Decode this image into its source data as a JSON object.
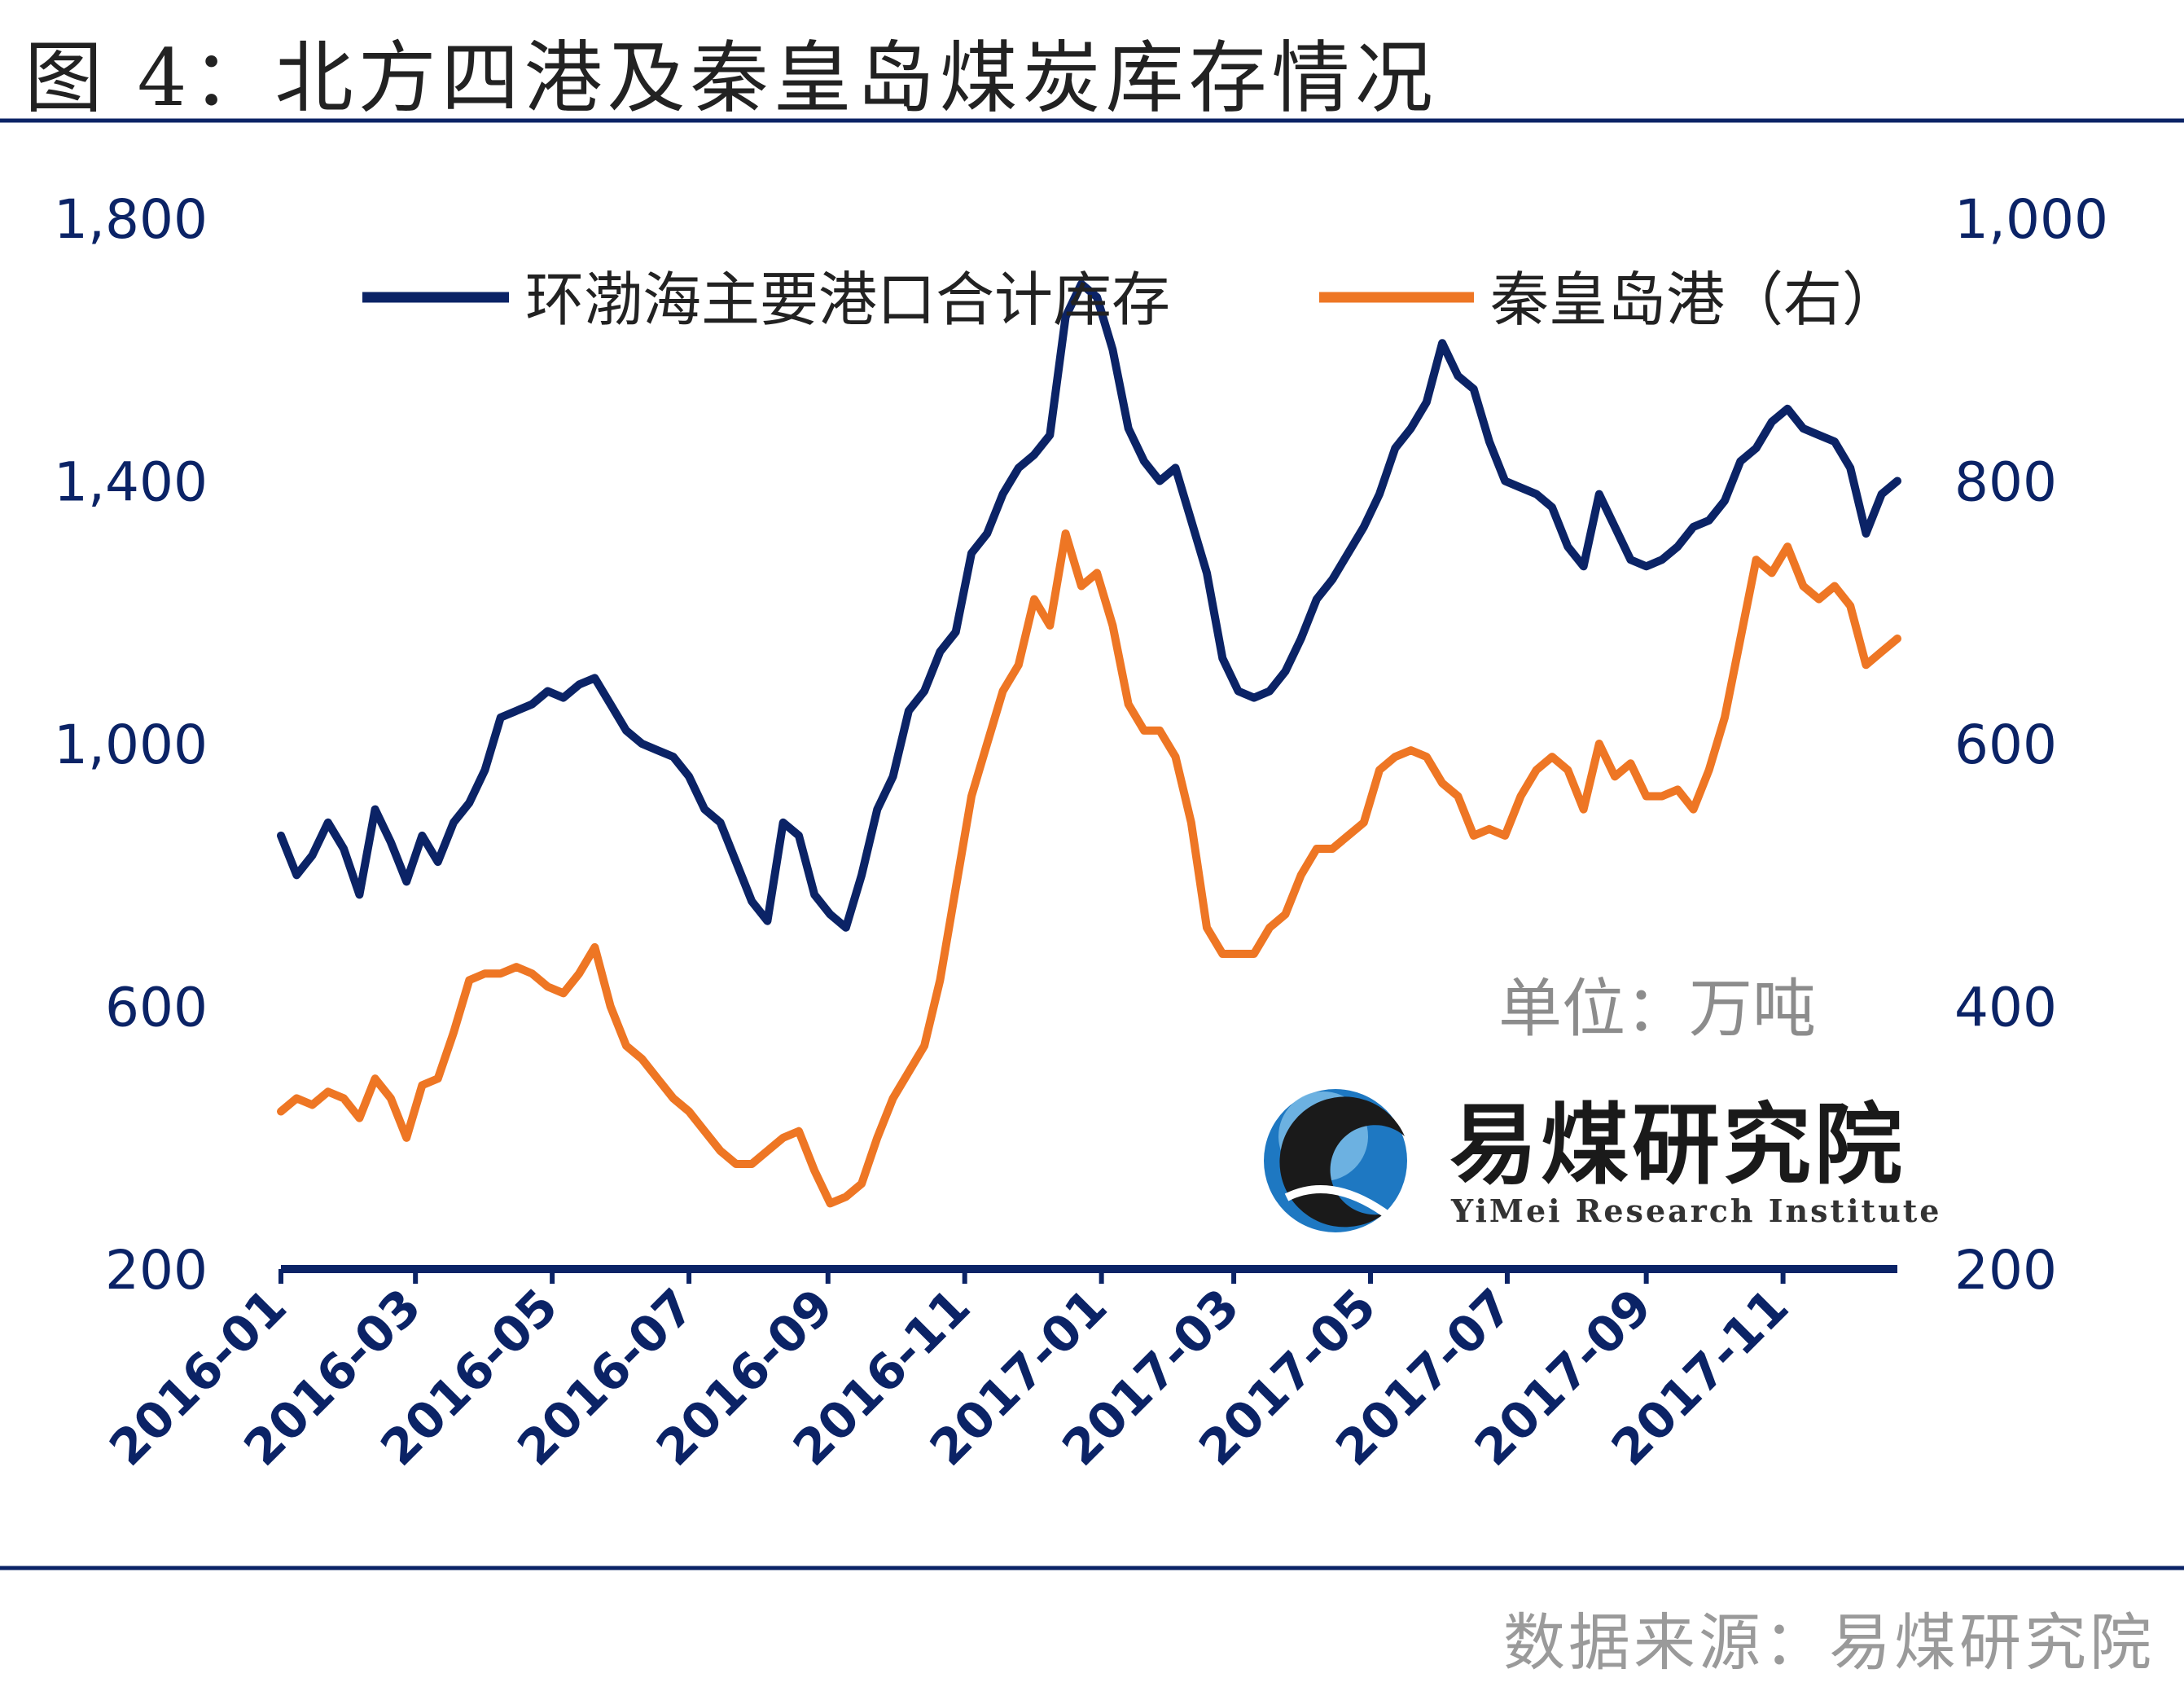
{
  "figure_title": "图 4：北方四港及秦皇岛煤炭库存情况",
  "unit_label": "单位：万吨",
  "source_label": "数据来源：易煤研究院",
  "logo": {
    "name_cn": "易煤研究院",
    "name_en": "YiMei Research Institute",
    "icon": "yimei-logo-icon"
  },
  "colors": {
    "series_left": "#0b2366",
    "series_right": "#ee7624",
    "axis": "#0b2366",
    "rule": "#0b2366",
    "logo_blue": "#1e78c2"
  },
  "chart_data": {
    "type": "line",
    "title": "北方四港及秦皇岛煤炭库存情况",
    "xlabel": "",
    "ylabel": "",
    "unit": "万吨",
    "x_range": [
      "2016-01-01",
      "2017-12-22"
    ],
    "x_ticks": [
      "2016-01",
      "2016-03",
      "2016-05",
      "2016-07",
      "2016-09",
      "2016-11",
      "2017-01",
      "2017-03",
      "2017-05",
      "2017-07",
      "2017-09",
      "2017-11"
    ],
    "y_left": {
      "lim": [
        200,
        1800
      ],
      "ticks": [
        "200",
        "600",
        "1,000",
        "1,400",
        "1,800"
      ]
    },
    "y_right": {
      "lim": [
        200,
        1000
      ],
      "ticks": [
        "200",
        "400",
        "600",
        "800",
        "1,000"
      ]
    },
    "grid": false,
    "legend_position": "top",
    "series": [
      {
        "name": "环渤海主要港口合计库存",
        "axis": "left",
        "points": [
          [
            "2016-01-01",
            860
          ],
          [
            "2016-01-08",
            800
          ],
          [
            "2016-01-15",
            830
          ],
          [
            "2016-01-22",
            880
          ],
          [
            "2016-01-29",
            840
          ],
          [
            "2016-02-05",
            770
          ],
          [
            "2016-02-12",
            900
          ],
          [
            "2016-02-19",
            850
          ],
          [
            "2016-02-26",
            790
          ],
          [
            "2016-03-04",
            860
          ],
          [
            "2016-03-11",
            820
          ],
          [
            "2016-03-18",
            880
          ],
          [
            "2016-03-25",
            910
          ],
          [
            "2016-04-01",
            960
          ],
          [
            "2016-04-08",
            1040
          ],
          [
            "2016-04-15",
            1050
          ],
          [
            "2016-04-22",
            1060
          ],
          [
            "2016-04-29",
            1080
          ],
          [
            "2016-05-06",
            1070
          ],
          [
            "2016-05-13",
            1090
          ],
          [
            "2016-05-20",
            1100
          ],
          [
            "2016-05-27",
            1060
          ],
          [
            "2016-06-03",
            1020
          ],
          [
            "2016-06-10",
            1000
          ],
          [
            "2016-06-17",
            990
          ],
          [
            "2016-06-24",
            980
          ],
          [
            "2016-07-01",
            950
          ],
          [
            "2016-07-08",
            900
          ],
          [
            "2016-07-15",
            880
          ],
          [
            "2016-07-22",
            820
          ],
          [
            "2016-07-29",
            760
          ],
          [
            "2016-08-05",
            730
          ],
          [
            "2016-08-12",
            880
          ],
          [
            "2016-08-19",
            860
          ],
          [
            "2016-08-26",
            770
          ],
          [
            "2016-09-02",
            740
          ],
          [
            "2016-09-09",
            720
          ],
          [
            "2016-09-16",
            800
          ],
          [
            "2016-09-23",
            900
          ],
          [
            "2016-09-30",
            950
          ],
          [
            "2016-10-07",
            1050
          ],
          [
            "2016-10-14",
            1080
          ],
          [
            "2016-10-21",
            1140
          ],
          [
            "2016-10-28",
            1170
          ],
          [
            "2016-11-04",
            1290
          ],
          [
            "2016-11-11",
            1320
          ],
          [
            "2016-11-18",
            1380
          ],
          [
            "2016-11-25",
            1420
          ],
          [
            "2016-12-02",
            1440
          ],
          [
            "2016-12-09",
            1470
          ],
          [
            "2016-12-16",
            1650
          ],
          [
            "2016-12-23",
            1700
          ],
          [
            "2016-12-30",
            1680
          ],
          [
            "2017-01-06",
            1600
          ],
          [
            "2017-01-13",
            1480
          ],
          [
            "2017-01-20",
            1430
          ],
          [
            "2017-01-27",
            1400
          ],
          [
            "2017-02-03",
            1420
          ],
          [
            "2017-02-10",
            1340
          ],
          [
            "2017-02-17",
            1260
          ],
          [
            "2017-02-24",
            1130
          ],
          [
            "2017-03-03",
            1080
          ],
          [
            "2017-03-10",
            1070
          ],
          [
            "2017-03-17",
            1080
          ],
          [
            "2017-03-24",
            1110
          ],
          [
            "2017-03-31",
            1160
          ],
          [
            "2017-04-07",
            1220
          ],
          [
            "2017-04-14",
            1250
          ],
          [
            "2017-04-21",
            1290
          ],
          [
            "2017-04-28",
            1330
          ],
          [
            "2017-05-05",
            1380
          ],
          [
            "2017-05-12",
            1450
          ],
          [
            "2017-05-19",
            1480
          ],
          [
            "2017-05-26",
            1520
          ],
          [
            "2017-06-02",
            1610
          ],
          [
            "2017-06-09",
            1560
          ],
          [
            "2017-06-16",
            1540
          ],
          [
            "2017-06-23",
            1460
          ],
          [
            "2017-06-30",
            1400
          ],
          [
            "2017-07-07",
            1390
          ],
          [
            "2017-07-14",
            1380
          ],
          [
            "2017-07-21",
            1360
          ],
          [
            "2017-07-28",
            1300
          ],
          [
            "2017-08-04",
            1270
          ],
          [
            "2017-08-11",
            1380
          ],
          [
            "2017-08-18",
            1330
          ],
          [
            "2017-08-25",
            1280
          ],
          [
            "2017-09-01",
            1270
          ],
          [
            "2017-09-08",
            1280
          ],
          [
            "2017-09-15",
            1300
          ],
          [
            "2017-09-22",
            1330
          ],
          [
            "2017-09-29",
            1340
          ],
          [
            "2017-10-06",
            1370
          ],
          [
            "2017-10-13",
            1430
          ],
          [
            "2017-10-20",
            1450
          ],
          [
            "2017-10-27",
            1490
          ],
          [
            "2017-11-03",
            1510
          ],
          [
            "2017-11-10",
            1480
          ],
          [
            "2017-11-17",
            1470
          ],
          [
            "2017-11-24",
            1460
          ],
          [
            "2017-12-01",
            1420
          ],
          [
            "2017-12-08",
            1320
          ],
          [
            "2017-12-15",
            1380
          ],
          [
            "2017-12-22",
            1400
          ]
        ]
      },
      {
        "name": "秦皇岛港（右）",
        "axis": "right",
        "points": [
          [
            "2016-01-01",
            320
          ],
          [
            "2016-01-08",
            330
          ],
          [
            "2016-01-15",
            325
          ],
          [
            "2016-01-22",
            335
          ],
          [
            "2016-01-29",
            330
          ],
          [
            "2016-02-05",
            315
          ],
          [
            "2016-02-12",
            345
          ],
          [
            "2016-02-19",
            330
          ],
          [
            "2016-02-26",
            300
          ],
          [
            "2016-03-04",
            340
          ],
          [
            "2016-03-11",
            345
          ],
          [
            "2016-03-18",
            380
          ],
          [
            "2016-03-25",
            420
          ],
          [
            "2016-04-01",
            425
          ],
          [
            "2016-04-08",
            425
          ],
          [
            "2016-04-15",
            430
          ],
          [
            "2016-04-22",
            425
          ],
          [
            "2016-04-29",
            415
          ],
          [
            "2016-05-06",
            410
          ],
          [
            "2016-05-13",
            425
          ],
          [
            "2016-05-20",
            445
          ],
          [
            "2016-05-27",
            400
          ],
          [
            "2016-06-03",
            370
          ],
          [
            "2016-06-10",
            360
          ],
          [
            "2016-06-17",
            345
          ],
          [
            "2016-06-24",
            330
          ],
          [
            "2016-07-01",
            320
          ],
          [
            "2016-07-08",
            305
          ],
          [
            "2016-07-15",
            290
          ],
          [
            "2016-07-22",
            280
          ],
          [
            "2016-07-29",
            280
          ],
          [
            "2016-08-05",
            290
          ],
          [
            "2016-08-12",
            300
          ],
          [
            "2016-08-19",
            305
          ],
          [
            "2016-08-26",
            275
          ],
          [
            "2016-09-02",
            250
          ],
          [
            "2016-09-09",
            255
          ],
          [
            "2016-09-16",
            265
          ],
          [
            "2016-09-23",
            300
          ],
          [
            "2016-09-30",
            330
          ],
          [
            "2016-10-07",
            350
          ],
          [
            "2016-10-14",
            370
          ],
          [
            "2016-10-21",
            420
          ],
          [
            "2016-10-28",
            490
          ],
          [
            "2016-11-04",
            560
          ],
          [
            "2016-11-11",
            600
          ],
          [
            "2016-11-18",
            640
          ],
          [
            "2016-11-25",
            660
          ],
          [
            "2016-12-02",
            710
          ],
          [
            "2016-12-09",
            690
          ],
          [
            "2016-12-16",
            760
          ],
          [
            "2016-12-23",
            720
          ],
          [
            "2016-12-30",
            730
          ],
          [
            "2017-01-06",
            690
          ],
          [
            "2017-01-13",
            630
          ],
          [
            "2017-01-20",
            610
          ],
          [
            "2017-01-27",
            610
          ],
          [
            "2017-02-03",
            590
          ],
          [
            "2017-02-10",
            540
          ],
          [
            "2017-02-17",
            460
          ],
          [
            "2017-02-24",
            440
          ],
          [
            "2017-03-03",
            440
          ],
          [
            "2017-03-10",
            440
          ],
          [
            "2017-03-17",
            460
          ],
          [
            "2017-03-24",
            470
          ],
          [
            "2017-03-31",
            500
          ],
          [
            "2017-04-07",
            520
          ],
          [
            "2017-04-14",
            520
          ],
          [
            "2017-04-21",
            530
          ],
          [
            "2017-04-28",
            540
          ],
          [
            "2017-05-05",
            580
          ],
          [
            "2017-05-12",
            590
          ],
          [
            "2017-05-19",
            595
          ],
          [
            "2017-05-26",
            590
          ],
          [
            "2017-06-02",
            570
          ],
          [
            "2017-06-09",
            560
          ],
          [
            "2017-06-16",
            530
          ],
          [
            "2017-06-23",
            535
          ],
          [
            "2017-06-30",
            530
          ],
          [
            "2017-07-07",
            560
          ],
          [
            "2017-07-14",
            580
          ],
          [
            "2017-07-21",
            590
          ],
          [
            "2017-07-28",
            580
          ],
          [
            "2017-08-04",
            550
          ],
          [
            "2017-08-11",
            600
          ],
          [
            "2017-08-18",
            575
          ],
          [
            "2017-08-25",
            585
          ],
          [
            "2017-09-01",
            560
          ],
          [
            "2017-09-08",
            560
          ],
          [
            "2017-09-15",
            565
          ],
          [
            "2017-09-22",
            550
          ],
          [
            "2017-09-29",
            580
          ],
          [
            "2017-10-06",
            620
          ],
          [
            "2017-10-13",
            680
          ],
          [
            "2017-10-20",
            740
          ],
          [
            "2017-10-27",
            730
          ],
          [
            "2017-11-03",
            750
          ],
          [
            "2017-11-10",
            720
          ],
          [
            "2017-11-17",
            710
          ],
          [
            "2017-11-24",
            720
          ],
          [
            "2017-12-01",
            705
          ],
          [
            "2017-12-08",
            660
          ],
          [
            "2017-12-15",
            670
          ],
          [
            "2017-12-22",
            680
          ]
        ]
      }
    ]
  }
}
